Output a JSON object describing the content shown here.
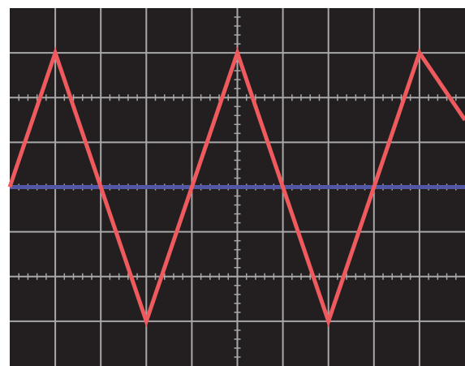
{
  "chart_data": {
    "type": "line",
    "title": "",
    "xlabel": "",
    "ylabel": "",
    "grid": true,
    "colors": {
      "screen": "#231f20",
      "grid": "#a8a8a8",
      "triangle": "#ee5a5e",
      "baseline": "#5157a5"
    },
    "grid_divisions": {
      "x": 10,
      "y": 8
    },
    "minor_ticks_per_division": 5,
    "xlim": [
      0,
      10
    ],
    "ylim": [
      -4,
      4
    ],
    "series": [
      {
        "x": [
          0,
          1,
          3,
          5,
          7,
          9,
          10
        ],
        "y": [
          0,
          3,
          -3,
          3,
          -3,
          3,
          1.5
        ]
      },
      {
        "x": [
          0,
          10
        ],
        "y": [
          0,
          0
        ]
      }
    ]
  }
}
